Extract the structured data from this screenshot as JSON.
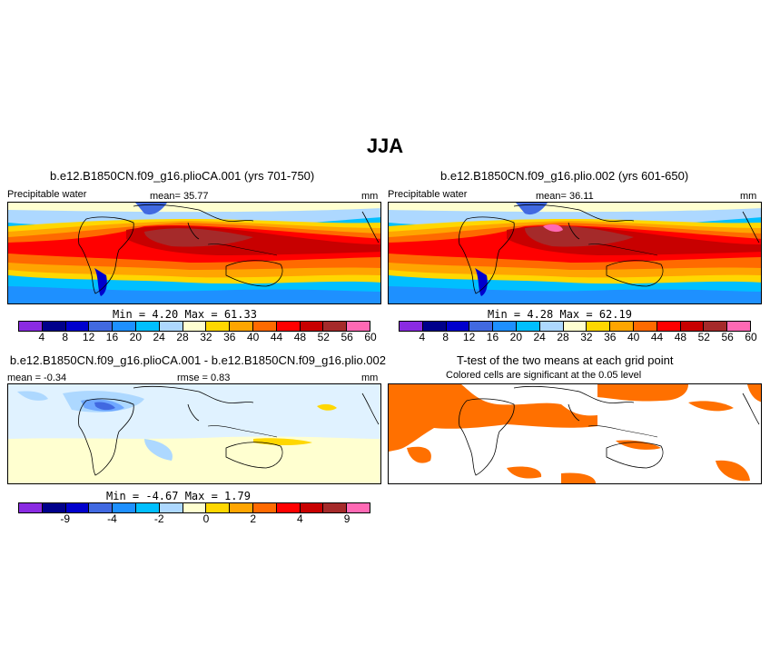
{
  "figure": {
    "title": "JJA"
  },
  "panel_tl": {
    "title": "b.e12.B1850CN.f09_g16.plioCA.001 (yrs 701-750)",
    "variable": "Precipitable water",
    "mean": "mean=  35.77",
    "units": "mm",
    "minmax": "Min =   4.20  Max =  61.33",
    "ticks": [
      "4",
      "8",
      "12",
      "16",
      "20",
      "24",
      "28",
      "32",
      "36",
      "40",
      "44",
      "48",
      "52",
      "56",
      "60"
    ]
  },
  "panel_tr": {
    "title": "b.e12.B1850CN.f09_g16.plio.002 (yrs 601-650)",
    "variable": "Precipitable water",
    "mean": "mean=  36.11",
    "units": "mm",
    "minmax": "Min =   4.28  Max =  62.19",
    "ticks": [
      "4",
      "8",
      "12",
      "16",
      "20",
      "24",
      "28",
      "32",
      "36",
      "40",
      "44",
      "48",
      "52",
      "56",
      "60"
    ]
  },
  "panel_bl": {
    "title": "b.e12.B1850CN.f09_g16.plioCA.001 - b.e12.B1850CN.f09_g16.plio.002",
    "mean": "mean =  -0.34",
    "rmse": "rmse =   0.83",
    "units": "mm",
    "minmax": "Min =  -4.67  Max =   1.79",
    "ticks": [
      "-9",
      "-4",
      "-2",
      "0",
      "2",
      "4",
      "9"
    ]
  },
  "panel_br": {
    "title": "T-test of the two means at each grid point",
    "subtitle": "Colored cells are significant at the 0.05 level"
  },
  "colors": {
    "abs_scale": [
      "#8a2be2",
      "#00008b",
      "#0000cd",
      "#4169e1",
      "#1e90ff",
      "#00bfff",
      "#add8ff",
      "#ffffd0",
      "#ffd700",
      "#ffa500",
      "#ff6a00",
      "#ff0000",
      "#c80000",
      "#a52a2a",
      "#ff69b4"
    ],
    "diff_scale": [
      "#8a2be2",
      "#00008b",
      "#0000cd",
      "#4169e1",
      "#1e90ff",
      "#00bfff",
      "#add8ff",
      "#ffffd0",
      "#ffd700",
      "#ffa500",
      "#ff6a00",
      "#ff0000",
      "#c80000",
      "#a52a2a",
      "#ff69b4"
    ],
    "signif": "#ff7000"
  }
}
